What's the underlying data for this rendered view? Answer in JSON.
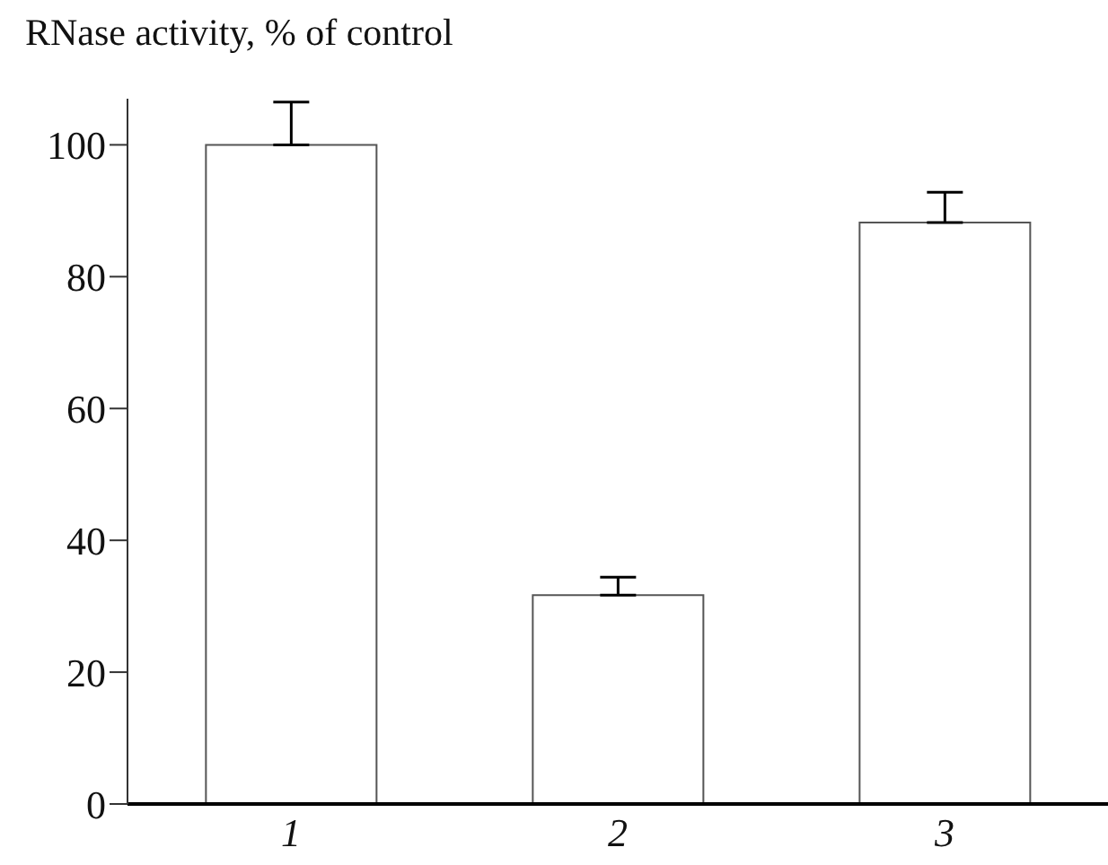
{
  "chart_data": {
    "type": "bar",
    "ylabel": "RNase activity, % of control",
    "categories": [
      "1",
      "2",
      "3"
    ],
    "values": [
      100,
      31.7,
      88.2
    ],
    "errors": [
      [
        100,
        106.5
      ],
      [
        31.7,
        34.4
      ],
      [
        88.2,
        92.8
      ]
    ],
    "color": "#ffffff",
    "ylim": [
      0,
      107
    ],
    "yticks": [
      0,
      20,
      40,
      60,
      80,
      100
    ],
    "grid": false
  }
}
